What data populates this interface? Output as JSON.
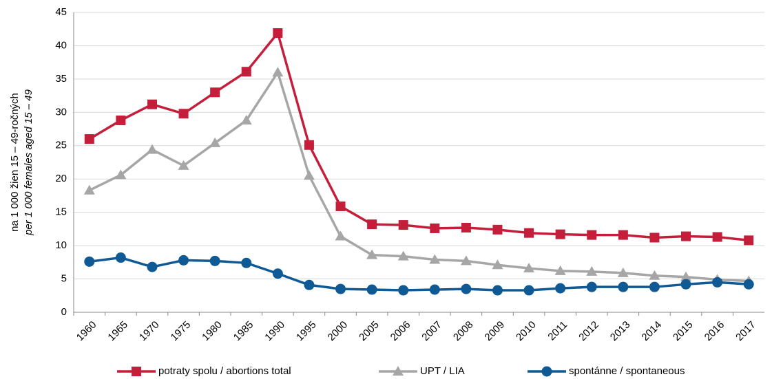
{
  "chart_data": {
    "type": "line",
    "ylabel": [
      "na 1 000 žien 15 – 49-ročných",
      "per 1 000 females aged 15 – 49"
    ],
    "categories": [
      "1960",
      "1965",
      "1970",
      "1975",
      "1980",
      "1985",
      "1990",
      "1995",
      "2000",
      "2005",
      "2006",
      "2007",
      "2008",
      "2009",
      "2010",
      "2011",
      "2012",
      "2013",
      "2014",
      "2015",
      "2016",
      "2017"
    ],
    "series": [
      {
        "name": "potraty spolu / abortions total",
        "color": "#c41e3a",
        "marker": "square",
        "values": [
          26.0,
          28.8,
          31.2,
          29.8,
          33.0,
          36.1,
          41.9,
          25.1,
          15.9,
          13.2,
          13.1,
          12.6,
          12.7,
          12.4,
          11.9,
          11.7,
          11.6,
          11.6,
          11.2,
          11.4,
          11.3,
          10.8
        ]
      },
      {
        "name": "UPT / LIA",
        "color": "#a6a6a6",
        "marker": "triangle",
        "values": [
          18.3,
          20.6,
          24.4,
          22.0,
          25.4,
          28.8,
          36.0,
          20.5,
          11.4,
          8.6,
          8.4,
          7.9,
          7.7,
          7.1,
          6.6,
          6.2,
          6.1,
          5.9,
          5.5,
          5.3,
          4.9,
          4.7
        ]
      },
      {
        "name": "spontánne / spontaneous",
        "color": "#0f5a94",
        "marker": "circle",
        "values": [
          7.6,
          8.2,
          6.8,
          7.8,
          7.7,
          7.4,
          5.8,
          4.1,
          3.5,
          3.4,
          3.3,
          3.4,
          3.5,
          3.3,
          3.3,
          3.6,
          3.8,
          3.8,
          3.8,
          4.2,
          4.5,
          4.2
        ]
      }
    ],
    "ylim": [
      0,
      45
    ],
    "yticks": [
      0,
      5,
      10,
      15,
      20,
      25,
      30,
      35,
      40,
      45
    ],
    "grid": true,
    "legend": "bottom"
  }
}
